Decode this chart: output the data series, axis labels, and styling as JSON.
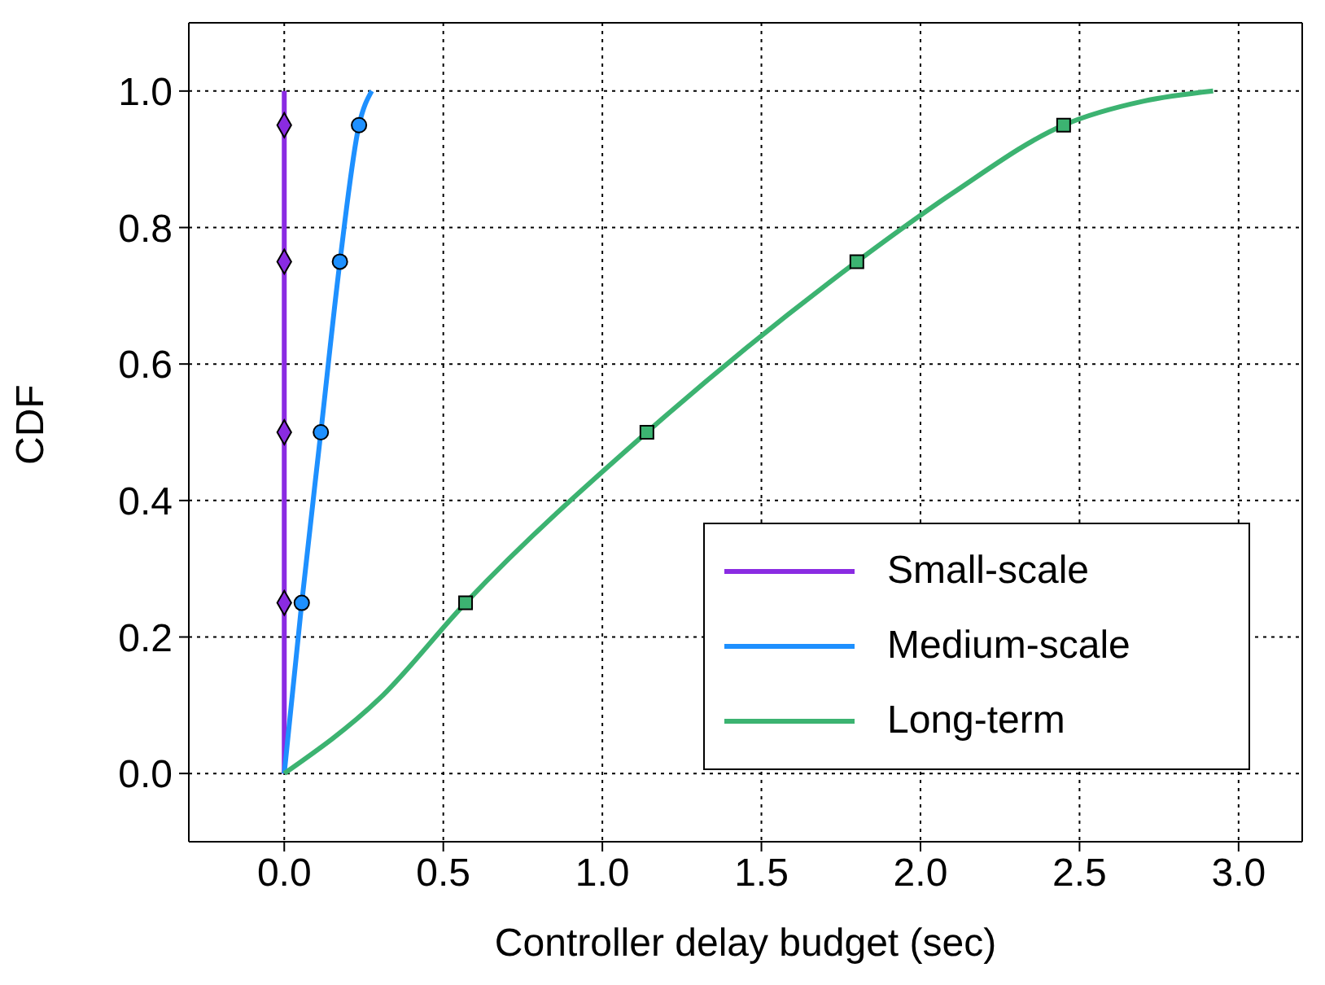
{
  "chart_data": {
    "type": "line",
    "xlabel": "Controller delay budget (sec)",
    "ylabel": "CDF",
    "xlim": [
      -0.3,
      3.2
    ],
    "ylim": [
      -0.1,
      1.1
    ],
    "xticks": [
      {
        "value": 0,
        "label": "0.0"
      },
      0.5,
      {
        "value": 1,
        "label": "1.0"
      },
      1.5,
      {
        "value": 2,
        "label": "2.0"
      },
      2.5,
      {
        "value": 3,
        "label": "3.0"
      }
    ],
    "yticks": [
      {
        "value": 0,
        "label": "0.0"
      },
      0.2,
      0.4,
      0.6,
      0.8,
      {
        "value": 1,
        "label": "1.0"
      }
    ],
    "grid": true,
    "legend": "bottom right",
    "line_style": "solid",
    "series": [
      {
        "name": "Small-scale",
        "color": "#8a2be2",
        "x": [
          0,
          0
        ],
        "values": [
          0,
          1
        ]
      },
      {
        "name": "Medium-scale",
        "color": "#1e90ff",
        "x": [
          0,
          0.055,
          0.115,
          0.175,
          0.235,
          0.275
        ],
        "values": [
          0,
          0.25,
          0.5,
          0.75,
          0.95,
          1
        ]
      },
      {
        "name": "Long-term",
        "color": "#3cb371",
        "x": [
          0,
          0.3,
          0.57,
          1.14,
          1.8,
          2.1,
          2.45,
          2.7,
          2.92
        ],
        "values": [
          0,
          0.11,
          0.25,
          0.5,
          0.75,
          0.85,
          0.95,
          0.985,
          1
        ]
      },
      {
        "type": "scatter",
        "marker": "diamond",
        "color": "#8a2be2",
        "x": [
          0,
          0,
          0,
          0
        ],
        "values": [
          0.25,
          0.5,
          0.75,
          0.95
        ]
      },
      {
        "type": "scatter",
        "marker": "circle",
        "color": "#1e90ff",
        "x": [
          0.055,
          0.115,
          0.175,
          0.235
        ],
        "values": [
          0.25,
          0.5,
          0.75,
          0.95
        ]
      },
      {
        "type": "scatter",
        "marker": "square",
        "color": "#3cb371",
        "x": [
          0.57,
          1.14,
          1.8,
          2.45
        ],
        "values": [
          0.25,
          0.5,
          0.75,
          0.95
        ]
      }
    ]
  }
}
